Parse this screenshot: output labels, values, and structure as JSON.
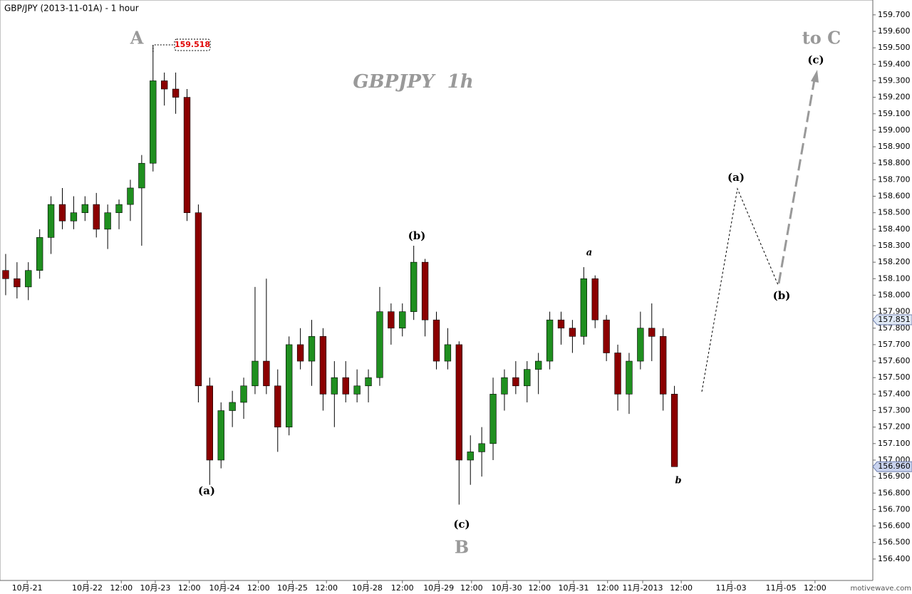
{
  "chart_data": {
    "type": "candlestick",
    "title": "GBP/JPY (2013-11-01A) - 1 hour",
    "watermark": "GBPJPY  1h",
    "credit": "motivewave.com",
    "up_color": "#1f8f1f",
    "down_color": "#8b0000",
    "grid": false,
    "xlim": [
      0,
      77
    ],
    "xticks": [
      {
        "value": 2.4,
        "label": "10月-21"
      },
      {
        "value": 7.7,
        "label": "10月-22"
      },
      {
        "value": 10.7,
        "label": "12:00"
      },
      {
        "value": 13.7,
        "label": "10月-23"
      },
      {
        "value": 16.7,
        "label": "12:00"
      },
      {
        "value": 19.8,
        "label": "10月-24"
      },
      {
        "value": 22.8,
        "label": "12:00"
      },
      {
        "value": 25.8,
        "label": "10月-25"
      },
      {
        "value": 28.8,
        "label": "12:00"
      },
      {
        "value": 32.4,
        "label": "10月-28"
      },
      {
        "value": 35.5,
        "label": "12:00"
      },
      {
        "value": 38.7,
        "label": "10月-29"
      },
      {
        "value": 41.6,
        "label": "12:00"
      },
      {
        "value": 44.7,
        "label": "10月-30"
      },
      {
        "value": 47.6,
        "label": "12:00"
      },
      {
        "value": 50.6,
        "label": "10月-31"
      },
      {
        "value": 53.6,
        "label": "12:00"
      },
      {
        "value": 56.7,
        "label": "11月-2013"
      },
      {
        "value": 60.1,
        "label": "12:00"
      },
      {
        "value": 64.5,
        "label": "11月-03"
      },
      {
        "value": 68.9,
        "label": "11月-05"
      },
      {
        "value": 71.9,
        "label": "12:00"
      }
    ],
    "ylim": [
      156.27,
      159.79
    ],
    "yticks": [
      {
        "value": 156.4,
        "label": "156.400"
      },
      {
        "value": 156.5,
        "label": "156.500"
      },
      {
        "value": 156.6,
        "label": "156.600"
      },
      {
        "value": 156.7,
        "label": "156.700"
      },
      {
        "value": 156.8,
        "label": "156.800"
      },
      {
        "value": 156.9,
        "label": "156.900"
      },
      {
        "value": 157.0,
        "label": "157.000"
      },
      {
        "value": 157.1,
        "label": "157.100"
      },
      {
        "value": 157.2,
        "label": "157.200"
      },
      {
        "value": 157.3,
        "label": "157.300"
      },
      {
        "value": 157.4,
        "label": "157.400"
      },
      {
        "value": 157.5,
        "label": "157.500"
      },
      {
        "value": 157.6,
        "label": "157.600"
      },
      {
        "value": 157.7,
        "label": "157.700"
      },
      {
        "value": 157.8,
        "label": "157.800"
      },
      {
        "value": 157.9,
        "label": "157.900"
      },
      {
        "value": 158.0,
        "label": "158.000"
      },
      {
        "value": 158.1,
        "label": "158.100"
      },
      {
        "value": 158.2,
        "label": "158.200"
      },
      {
        "value": 158.3,
        "label": "158.300"
      },
      {
        "value": 158.4,
        "label": "158.400"
      },
      {
        "value": 158.5,
        "label": "158.500"
      },
      {
        "value": 158.6,
        "label": "158.600"
      },
      {
        "value": 158.7,
        "label": "158.700"
      },
      {
        "value": 158.8,
        "label": "158.800"
      },
      {
        "value": 158.9,
        "label": "158.900"
      },
      {
        "value": 159.0,
        "label": "159.000"
      },
      {
        "value": 159.1,
        "label": "159.100"
      },
      {
        "value": 159.2,
        "label": "159.200"
      },
      {
        "value": 159.3,
        "label": "159.300"
      },
      {
        "value": 159.4,
        "label": "159.400"
      },
      {
        "value": 159.5,
        "label": "159.500"
      },
      {
        "value": 159.6,
        "label": "159.600"
      },
      {
        "value": 159.7,
        "label": "159.700"
      }
    ],
    "price_markers": [
      {
        "value": 157.851,
        "label": "157.851"
      },
      {
        "value": 156.96,
        "label": "156.960"
      }
    ],
    "high_marker": {
      "value": 159.518,
      "label": "159.518"
    },
    "annotations": [
      "A",
      "(a)",
      "(b)",
      "(c)",
      "B",
      "a",
      "b",
      "(a)",
      "(b)",
      "(c)",
      "to C"
    ],
    "x": [
      0,
      1,
      2,
      3,
      4,
      5,
      6,
      7,
      8,
      9,
      10,
      11,
      12,
      13,
      14,
      15,
      16,
      17,
      18,
      19,
      20,
      21,
      22,
      23,
      24,
      25,
      26,
      27,
      28,
      29,
      30,
      31,
      32,
      33,
      34,
      35,
      36,
      37,
      38,
      39,
      40,
      41,
      42,
      43,
      44,
      45,
      46,
      47,
      48,
      49,
      50,
      51,
      52,
      53,
      54,
      55,
      56,
      57,
      58,
      59
    ],
    "open": [
      158.15,
      158.1,
      158.05,
      158.15,
      158.35,
      158.55,
      158.45,
      158.5,
      158.55,
      158.4,
      158.5,
      158.55,
      158.65,
      158.8,
      159.3,
      159.25,
      159.2,
      158.5,
      157.45,
      157.0,
      157.3,
      157.35,
      157.45,
      157.6,
      157.45,
      157.2,
      157.7,
      157.6,
      157.75,
      157.4,
      157.5,
      157.4,
      157.45,
      157.5,
      157.9,
      157.8,
      157.9,
      158.2,
      157.85,
      157.6,
      157.7,
      157.0,
      157.05,
      157.1,
      157.4,
      157.5,
      157.45,
      157.55,
      157.6,
      157.85,
      157.8,
      157.75,
      158.1,
      157.85,
      157.65,
      157.4,
      157.6,
      157.8,
      157.75,
      157.4
    ],
    "high": [
      158.25,
      158.2,
      158.2,
      158.4,
      158.6,
      158.65,
      158.6,
      158.6,
      158.62,
      158.55,
      158.58,
      158.7,
      158.85,
      159.518,
      159.35,
      159.35,
      159.25,
      158.55,
      157.5,
      157.35,
      157.42,
      157.5,
      158.05,
      158.1,
      157.55,
      157.75,
      157.8,
      157.85,
      157.8,
      157.6,
      157.6,
      157.55,
      157.55,
      158.05,
      157.95,
      157.95,
      158.3,
      158.22,
      157.9,
      157.8,
      157.72,
      157.15,
      157.2,
      157.5,
      157.55,
      157.6,
      157.6,
      157.65,
      157.9,
      157.9,
      157.85,
      158.17,
      158.12,
      157.88,
      157.7,
      157.65,
      157.9,
      157.95,
      157.8,
      157.45
    ],
    "low": [
      158.0,
      157.98,
      157.97,
      158.1,
      158.25,
      158.4,
      158.4,
      158.45,
      158.35,
      158.28,
      158.4,
      158.45,
      158.3,
      158.75,
      159.15,
      159.1,
      158.45,
      157.35,
      156.85,
      156.95,
      157.2,
      157.25,
      157.4,
      157.4,
      157.05,
      157.15,
      157.55,
      157.45,
      157.3,
      157.2,
      157.35,
      157.35,
      157.35,
      157.45,
      157.7,
      157.75,
      157.85,
      157.75,
      157.55,
      157.55,
      156.73,
      156.85,
      156.9,
      157.0,
      157.3,
      157.4,
      157.35,
      157.4,
      157.55,
      157.7,
      157.65,
      157.7,
      157.8,
      157.6,
      157.3,
      157.28,
      157.55,
      157.6,
      157.3,
      156.96
    ],
    "close": [
      158.1,
      158.05,
      158.15,
      158.35,
      158.55,
      158.45,
      158.5,
      158.55,
      158.4,
      158.5,
      158.55,
      158.65,
      158.8,
      159.3,
      159.25,
      159.2,
      158.5,
      157.45,
      157.0,
      157.3,
      157.35,
      157.45,
      157.6,
      157.45,
      157.2,
      157.7,
      157.6,
      157.75,
      157.4,
      157.5,
      157.4,
      157.45,
      157.5,
      157.9,
      157.8,
      157.9,
      158.2,
      157.85,
      157.6,
      157.7,
      157.0,
      157.05,
      157.1,
      157.4,
      157.5,
      157.45,
      157.55,
      157.6,
      157.85,
      157.8,
      157.75,
      158.1,
      157.85,
      157.65,
      157.4,
      157.6,
      157.8,
      157.75,
      157.4,
      156.96
    ]
  }
}
